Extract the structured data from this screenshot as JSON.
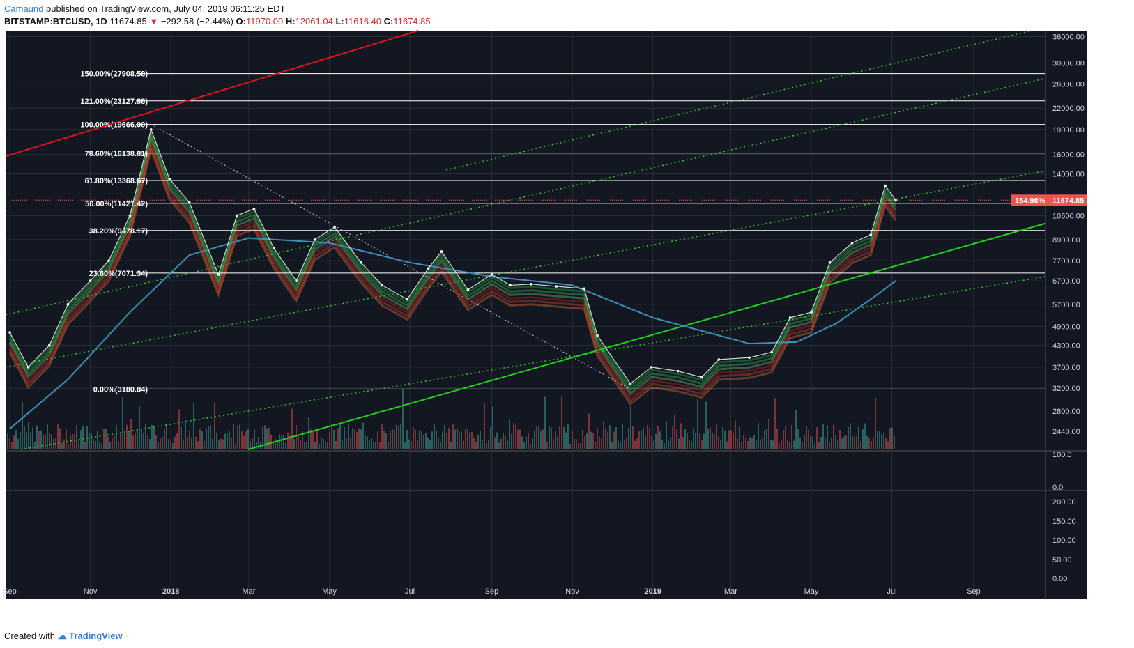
{
  "header": {
    "author": "Camaund",
    "published": "published on TradingView.com, July 04, 2019 06:11:25 EDT",
    "symbol": "BITSTAMP:BTCUSD, 1D",
    "last": "11674.85",
    "change": "−292.58 (−2.44%)",
    "o_label": "O:",
    "o_value": "11970.00",
    "h_label": "H:",
    "h_value": "12061.04",
    "l_label": "L:",
    "l_value": "11616.40",
    "c_label": "C:",
    "c_value": "11674.85"
  },
  "footer": {
    "created_with": "Created with",
    "brand": "TradingView"
  },
  "colors": {
    "background": "#131722",
    "grid": "#2a2e39",
    "fib": "#ffffff",
    "red_line": "#e0131b",
    "green_line": "#22d11b",
    "green_dotted": "#2fd12a",
    "ma_blue": "#3d8fb8",
    "price_label_bg": "#ef5350"
  },
  "chart_data": {
    "type": "line",
    "title": "",
    "scale": "log",
    "x_tick_labels": [
      "Sep",
      "Nov",
      "2018",
      "Mar",
      "May",
      "Jul",
      "Sep",
      "Nov",
      "2019",
      "Mar",
      "May",
      "Jul",
      "Sep"
    ],
    "y_tick_labels": [
      3200,
      3700,
      4300,
      4900,
      5700,
      6700,
      7700,
      8900,
      10500,
      14000,
      16000,
      19000,
      22000,
      26000,
      30000,
      36000
    ],
    "ylim": [
      2100,
      37500
    ],
    "fib_levels": [
      {
        "label": "150.00%(27908.58)",
        "value": 27908.58
      },
      {
        "label": "121.00%(23127.88)",
        "value": 23127.88
      },
      {
        "label": "100.00%(19666.00)",
        "value": 19666.0
      },
      {
        "label": "78.60%(16138.81)",
        "value": 16138.81
      },
      {
        "label": "61.80%(13368.67)",
        "value": 13368.67
      },
      {
        "label": "50.00%(11421.42)",
        "value": 11421.42
      },
      {
        "label": "38.20%(9478.17)",
        "value": 9478.17
      },
      {
        "label": "23.60%(7071.34)",
        "value": 7071.34
      },
      {
        "label": "0.00%(3180.84)",
        "value": 3180.84
      }
    ],
    "price_series": {
      "name": "",
      "x": [
        "2017-09-01",
        "2017-09-15",
        "2017-10-01",
        "2017-10-15",
        "2017-11-01",
        "2017-11-15",
        "2017-12-01",
        "2017-12-17",
        "2017-12-31",
        "2018-01-15",
        "2018-02-06",
        "2018-02-20",
        "2018-03-05",
        "2018-03-20",
        "2018-04-06",
        "2018-04-20",
        "2018-05-05",
        "2018-05-25",
        "2018-06-10",
        "2018-06-29",
        "2018-07-15",
        "2018-07-25",
        "2018-08-14",
        "2018-09-01",
        "2018-09-15",
        "2018-10-01",
        "2018-10-20",
        "2018-11-10",
        "2018-11-20",
        "2018-12-15",
        "2018-12-31",
        "2019-01-20",
        "2019-02-07",
        "2019-02-20",
        "2019-03-15",
        "2019-04-01",
        "2019-04-15",
        "2019-05-01",
        "2019-05-15",
        "2019-06-01",
        "2019-06-15",
        "2019-06-26",
        "2019-07-04"
      ],
      "y": [
        4700,
        3700,
        4300,
        5700,
        6700,
        7700,
        10500,
        19000,
        13500,
        11500,
        7000,
        10500,
        11000,
        8400,
        6700,
        8900,
        9700,
        7600,
        6500,
        5900,
        7300,
        8200,
        6300,
        7000,
        6500,
        6550,
        6450,
        6350,
        4600,
        3300,
        3700,
        3600,
        3450,
        3900,
        3950,
        4100,
        5200,
        5400,
        7600,
        8700,
        9200,
        12900,
        11674.85
      ]
    },
    "ma_series": {
      "name": "",
      "x": [
        "2017-09-01",
        "2017-10-15",
        "2017-12-01",
        "2018-01-15",
        "2018-03-01",
        "2018-05-01",
        "2018-07-01",
        "2018-09-01",
        "2018-11-01",
        "2019-01-01",
        "2019-03-15",
        "2019-04-20",
        "2019-05-20",
        "2019-06-15",
        "2019-07-04"
      ],
      "y": [
        2420,
        3400,
        5400,
        8000,
        9000,
        8700,
        7600,
        6900,
        6500,
        5200,
        4350,
        4400,
        5000,
        5900,
        6700
      ]
    },
    "volume_panel": {
      "y_tick_labels": [
        "100.0",
        "0.0"
      ],
      "count": 0
    },
    "oscillator_panel": {
      "y_tick_labels": [
        "200.00",
        "150.00",
        "100.00",
        "50.00",
        "0.00"
      ]
    },
    "price_label": {
      "percent": "154.98%",
      "value": "11674.85"
    },
    "volume_axis_labels": [
      "2800.00",
      "2440.00"
    ]
  }
}
